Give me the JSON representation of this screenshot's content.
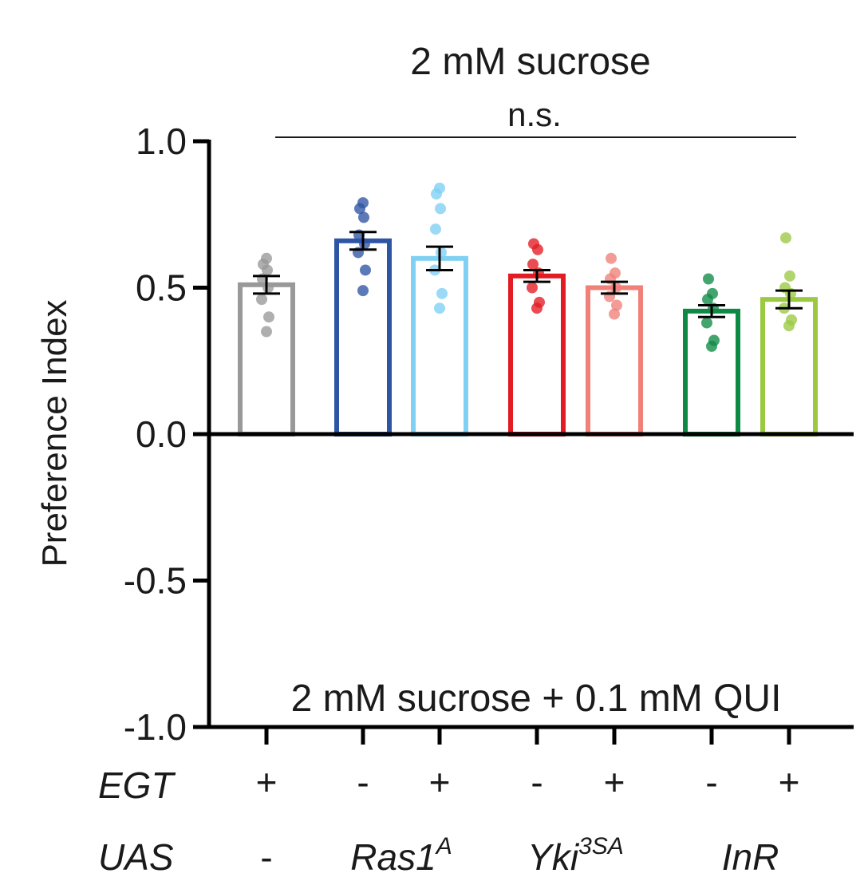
{
  "chart_data": {
    "type": "bar",
    "title": "2 mM sucrose",
    "subtitle": "2 mM sucrose + 0.1 mM QUI",
    "ylabel": "Preference Index",
    "ylim": [
      -1.0,
      1.0
    ],
    "yticks": [
      "1.0",
      "0.5",
      "0.0",
      "-0.5",
      "-1.0"
    ],
    "grid": false,
    "significance": {
      "label": "n.s.",
      "from_bar": 0,
      "to_bar": 6
    },
    "row_labels": {
      "egt": "EGT",
      "uas": "UAS"
    },
    "groups": [
      {
        "uas": "-",
        "sup": "",
        "color": "#1a1a1a",
        "bars": [
          0
        ]
      },
      {
        "uas": "Ras1",
        "sup": "A",
        "color": "#2e55a4",
        "bars": [
          1,
          2
        ]
      },
      {
        "uas": "Yki",
        "sup": "3SA",
        "color": "#e31b23",
        "bars": [
          3,
          4
        ]
      },
      {
        "uas": "InR",
        "sup": "",
        "color": "#0f8a45",
        "bars": [
          5,
          6
        ]
      }
    ],
    "bars": [
      {
        "egt": "+",
        "value": 0.51,
        "sem": 0.03,
        "color": "#999999",
        "points": [
          0.35,
          0.4,
          0.46,
          0.5,
          0.53,
          0.56,
          0.58,
          0.6
        ]
      },
      {
        "egt": "-",
        "value": 0.66,
        "sem": 0.03,
        "color": "#2e55a4",
        "points": [
          0.49,
          0.56,
          0.62,
          0.65,
          0.68,
          0.74,
          0.77,
          0.79
        ]
      },
      {
        "egt": "+",
        "value": 0.6,
        "sem": 0.04,
        "color": "#7fd0f3",
        "points": [
          0.43,
          0.48,
          0.56,
          0.62,
          0.7,
          0.77,
          0.82,
          0.84
        ]
      },
      {
        "egt": "-",
        "value": 0.54,
        "sem": 0.02,
        "color": "#e31b23",
        "points": [
          0.43,
          0.45,
          0.5,
          0.55,
          0.58,
          0.63,
          0.65
        ]
      },
      {
        "egt": "+",
        "value": 0.5,
        "sem": 0.02,
        "color": "#f08078",
        "points": [
          0.41,
          0.44,
          0.47,
          0.5,
          0.53,
          0.55,
          0.6
        ]
      },
      {
        "egt": "-",
        "value": 0.42,
        "sem": 0.02,
        "color": "#0f8a45",
        "points": [
          0.3,
          0.32,
          0.38,
          0.43,
          0.46,
          0.48,
          0.53
        ]
      },
      {
        "egt": "+",
        "value": 0.46,
        "sem": 0.03,
        "color": "#9bc942",
        "points": [
          0.37,
          0.39,
          0.43,
          0.48,
          0.5,
          0.54,
          0.67
        ]
      }
    ]
  }
}
